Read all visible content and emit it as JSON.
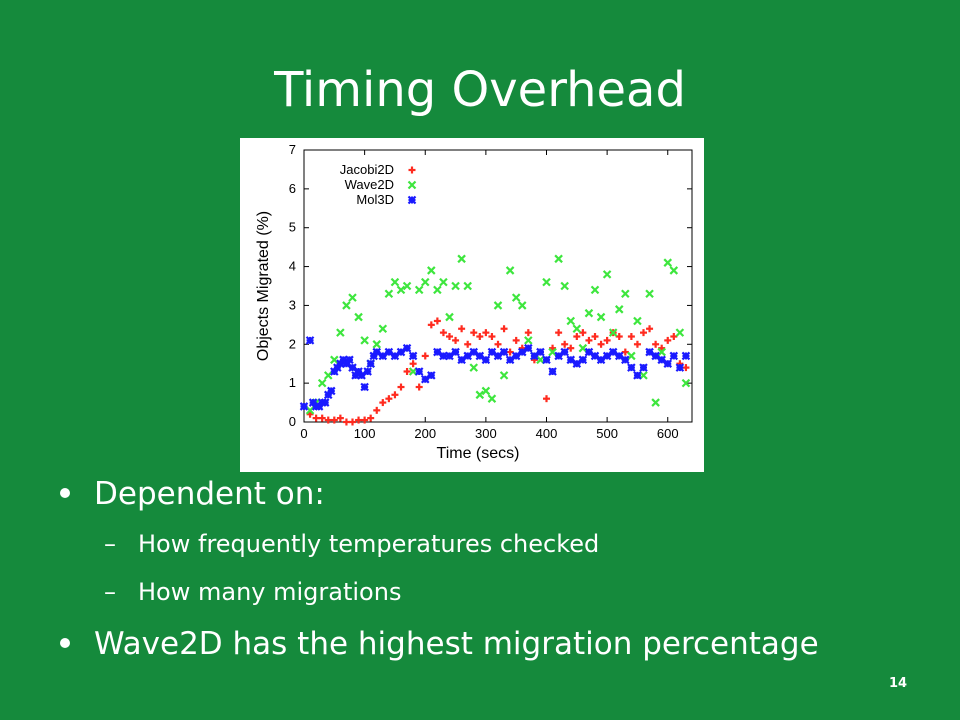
{
  "slide": {
    "title": "Timing Overhead",
    "page_number": "14",
    "bullets": [
      {
        "text": "Dependent on:",
        "sub": [
          "How frequently temperatures checked",
          "How many migrations"
        ]
      },
      {
        "text": "Wave2D has the highest migration percentage",
        "sub": []
      }
    ],
    "dash": "–"
  },
  "chart_data": {
    "type": "scatter",
    "xlabel": "Time (secs)",
    "ylabel": "Objects Migrated (%)",
    "xlim": [
      0,
      640
    ],
    "ylim": [
      0,
      7
    ],
    "xticks": [
      0,
      100,
      200,
      300,
      400,
      500,
      600
    ],
    "yticks": [
      0,
      1,
      2,
      3,
      4,
      5,
      6,
      7
    ],
    "legend_position": "top-left",
    "grid": false,
    "series": [
      {
        "name": "Jacobi2D",
        "marker": "+",
        "color": "#ff2b1f",
        "points": [
          [
            0,
            0.4
          ],
          [
            10,
            0.2
          ],
          [
            20,
            0.1
          ],
          [
            30,
            0.1
          ],
          [
            40,
            0.05
          ],
          [
            50,
            0.05
          ],
          [
            60,
            0.1
          ],
          [
            70,
            0
          ],
          [
            80,
            0
          ],
          [
            90,
            0.05
          ],
          [
            100,
            0.05
          ],
          [
            110,
            0.1
          ],
          [
            120,
            0.3
          ],
          [
            130,
            0.5
          ],
          [
            140,
            0.6
          ],
          [
            150,
            0.7
          ],
          [
            160,
            0.9
          ],
          [
            170,
            1.3
          ],
          [
            180,
            1.5
          ],
          [
            190,
            0.9
          ],
          [
            200,
            1.7
          ],
          [
            210,
            2.5
          ],
          [
            220,
            2.6
          ],
          [
            230,
            2.3
          ],
          [
            240,
            2.2
          ],
          [
            250,
            2.1
          ],
          [
            260,
            2.4
          ],
          [
            270,
            2.0
          ],
          [
            280,
            2.3
          ],
          [
            290,
            2.2
          ],
          [
            300,
            2.3
          ],
          [
            310,
            2.2
          ],
          [
            320,
            2.0
          ],
          [
            330,
            2.4
          ],
          [
            340,
            1.8
          ],
          [
            350,
            2.1
          ],
          [
            360,
            1.9
          ],
          [
            370,
            2.3
          ],
          [
            380,
            1.6
          ],
          [
            390,
            1.8
          ],
          [
            400,
            0.6
          ],
          [
            410,
            1.9
          ],
          [
            420,
            2.3
          ],
          [
            430,
            2.0
          ],
          [
            440,
            1.9
          ],
          [
            450,
            2.2
          ],
          [
            460,
            2.3
          ],
          [
            470,
            2.1
          ],
          [
            480,
            2.2
          ],
          [
            490,
            2.0
          ],
          [
            500,
            2.1
          ],
          [
            510,
            2.3
          ],
          [
            520,
            2.2
          ],
          [
            530,
            1.8
          ],
          [
            540,
            2.2
          ],
          [
            550,
            2.0
          ],
          [
            560,
            2.3
          ],
          [
            570,
            2.4
          ],
          [
            580,
            2.0
          ],
          [
            590,
            1.9
          ],
          [
            600,
            2.1
          ],
          [
            610,
            2.2
          ],
          [
            620,
            1.5
          ],
          [
            630,
            1.4
          ]
        ]
      },
      {
        "name": "Wave2D",
        "marker": "x",
        "color": "#3ee63e",
        "points": [
          [
            10,
            0.3
          ],
          [
            20,
            0.5
          ],
          [
            30,
            1.0
          ],
          [
            40,
            1.2
          ],
          [
            50,
            1.6
          ],
          [
            60,
            2.3
          ],
          [
            70,
            3.0
          ],
          [
            80,
            3.2
          ],
          [
            90,
            2.7
          ],
          [
            100,
            2.1
          ],
          [
            110,
            1.5
          ],
          [
            120,
            2.0
          ],
          [
            130,
            2.4
          ],
          [
            140,
            3.3
          ],
          [
            150,
            3.6
          ],
          [
            160,
            3.4
          ],
          [
            170,
            3.5
          ],
          [
            180,
            1.3
          ],
          [
            190,
            3.4
          ],
          [
            200,
            3.6
          ],
          [
            210,
            3.9
          ],
          [
            220,
            3.4
          ],
          [
            230,
            3.6
          ],
          [
            240,
            2.7
          ],
          [
            250,
            3.5
          ],
          [
            260,
            4.2
          ],
          [
            270,
            3.5
          ],
          [
            280,
            1.4
          ],
          [
            290,
            0.7
          ],
          [
            300,
            0.8
          ],
          [
            310,
            0.6
          ],
          [
            320,
            3.0
          ],
          [
            330,
            1.2
          ],
          [
            340,
            3.9
          ],
          [
            350,
            3.2
          ],
          [
            360,
            3.0
          ],
          [
            370,
            2.1
          ],
          [
            380,
            1.7
          ],
          [
            390,
            1.6
          ],
          [
            400,
            3.6
          ],
          [
            410,
            1.8
          ],
          [
            420,
            4.2
          ],
          [
            430,
            3.5
          ],
          [
            440,
            2.6
          ],
          [
            450,
            2.4
          ],
          [
            460,
            1.9
          ],
          [
            470,
            2.8
          ],
          [
            480,
            3.4
          ],
          [
            490,
            2.7
          ],
          [
            500,
            3.8
          ],
          [
            510,
            2.3
          ],
          [
            520,
            2.9
          ],
          [
            530,
            3.3
          ],
          [
            540,
            1.7
          ],
          [
            550,
            2.6
          ],
          [
            560,
            1.2
          ],
          [
            570,
            3.3
          ],
          [
            580,
            0.5
          ],
          [
            590,
            1.8
          ],
          [
            600,
            4.1
          ],
          [
            610,
            3.9
          ],
          [
            620,
            2.3
          ],
          [
            630,
            1.0
          ]
        ]
      },
      {
        "name": "Mol3D",
        "marker": "*",
        "color": "#1a1aff",
        "points": [
          [
            0,
            0.4
          ],
          [
            10,
            2.1
          ],
          [
            15,
            0.5
          ],
          [
            20,
            0.4
          ],
          [
            25,
            0.4
          ],
          [
            30,
            0.5
          ],
          [
            35,
            0.5
          ],
          [
            40,
            0.7
          ],
          [
            45,
            0.8
          ],
          [
            50,
            1.3
          ],
          [
            55,
            1.4
          ],
          [
            60,
            1.5
          ],
          [
            65,
            1.6
          ],
          [
            70,
            1.5
          ],
          [
            75,
            1.6
          ],
          [
            80,
            1.4
          ],
          [
            85,
            1.2
          ],
          [
            90,
            1.3
          ],
          [
            95,
            1.2
          ],
          [
            100,
            0.9
          ],
          [
            105,
            1.3
          ],
          [
            110,
            1.5
          ],
          [
            115,
            1.7
          ],
          [
            120,
            1.8
          ],
          [
            130,
            1.7
          ],
          [
            140,
            1.8
          ],
          [
            150,
            1.7
          ],
          [
            160,
            1.8
          ],
          [
            170,
            1.9
          ],
          [
            180,
            1.7
          ],
          [
            190,
            1.3
          ],
          [
            200,
            1.1
          ],
          [
            210,
            1.2
          ],
          [
            220,
            1.8
          ],
          [
            230,
            1.7
          ],
          [
            240,
            1.7
          ],
          [
            250,
            1.8
          ],
          [
            260,
            1.6
          ],
          [
            270,
            1.7
          ],
          [
            280,
            1.8
          ],
          [
            290,
            1.7
          ],
          [
            300,
            1.6
          ],
          [
            310,
            1.8
          ],
          [
            320,
            1.7
          ],
          [
            330,
            1.8
          ],
          [
            340,
            1.6
          ],
          [
            350,
            1.7
          ],
          [
            360,
            1.8
          ],
          [
            370,
            1.9
          ],
          [
            380,
            1.7
          ],
          [
            390,
            1.8
          ],
          [
            400,
            1.6
          ],
          [
            410,
            1.3
          ],
          [
            420,
            1.7
          ],
          [
            430,
            1.8
          ],
          [
            440,
            1.6
          ],
          [
            450,
            1.5
          ],
          [
            460,
            1.6
          ],
          [
            470,
            1.8
          ],
          [
            480,
            1.7
          ],
          [
            490,
            1.6
          ],
          [
            500,
            1.7
          ],
          [
            510,
            1.8
          ],
          [
            520,
            1.7
          ],
          [
            530,
            1.6
          ],
          [
            540,
            1.4
          ],
          [
            550,
            1.2
          ],
          [
            560,
            1.4
          ],
          [
            570,
            1.8
          ],
          [
            580,
            1.7
          ],
          [
            590,
            1.6
          ],
          [
            600,
            1.5
          ],
          [
            610,
            1.7
          ],
          [
            620,
            1.4
          ],
          [
            630,
            1.7
          ]
        ]
      }
    ]
  }
}
